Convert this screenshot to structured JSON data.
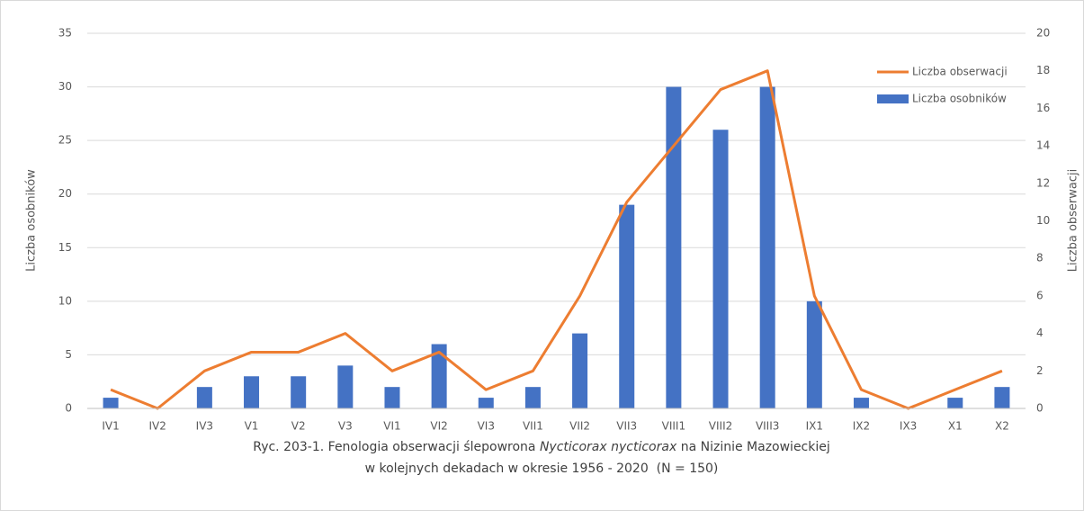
{
  "chart_data": {
    "type": "bar",
    "categories": [
      "IV1",
      "IV2",
      "IV3",
      "V1",
      "V2",
      "V3",
      "VI1",
      "VI2",
      "VI3",
      "VII1",
      "VII2",
      "VII3",
      "VIII1",
      "VIII2",
      "VIII3",
      "IX1",
      "IX2",
      "IX3",
      "X1",
      "X2"
    ],
    "series": [
      {
        "name": "Liczba obserwacji",
        "type": "line",
        "axis": "y2",
        "color": "#ed7d31",
        "values": [
          1,
          0,
          2,
          3,
          3,
          4,
          2,
          3,
          1,
          2,
          6,
          11,
          14,
          17,
          18,
          6,
          1,
          0,
          1,
          2
        ]
      },
      {
        "name": "Liczba osobników",
        "type": "bar",
        "color": "#4472c4",
        "values": [
          1,
          0,
          2,
          3,
          3,
          4,
          2,
          6,
          1,
          2,
          7,
          19,
          30,
          26,
          30,
          10,
          1,
          0,
          1,
          2
        ]
      }
    ],
    "ylabel": "Liczba osobników",
    "y2label": "Liczba obserwacji",
    "ylim": [
      0,
      35
    ],
    "yticks": [
      0,
      5,
      10,
      15,
      20,
      25,
      30,
      35
    ],
    "y2lim": [
      0,
      20
    ],
    "y2ticks": [
      0,
      2,
      4,
      6,
      8,
      10,
      12,
      14,
      16,
      18,
      20
    ],
    "grid": true,
    "legend": "top-right",
    "caption": [
      "Ryc. 203-1. Fenologia obserwacji ślepowrona ",
      "Nycticorax nycticorax",
      " na Nizinie Mazowieckiej",
      "w kolejnych dekadach w okresie 1956 - 2020  (N = 150)"
    ]
  }
}
